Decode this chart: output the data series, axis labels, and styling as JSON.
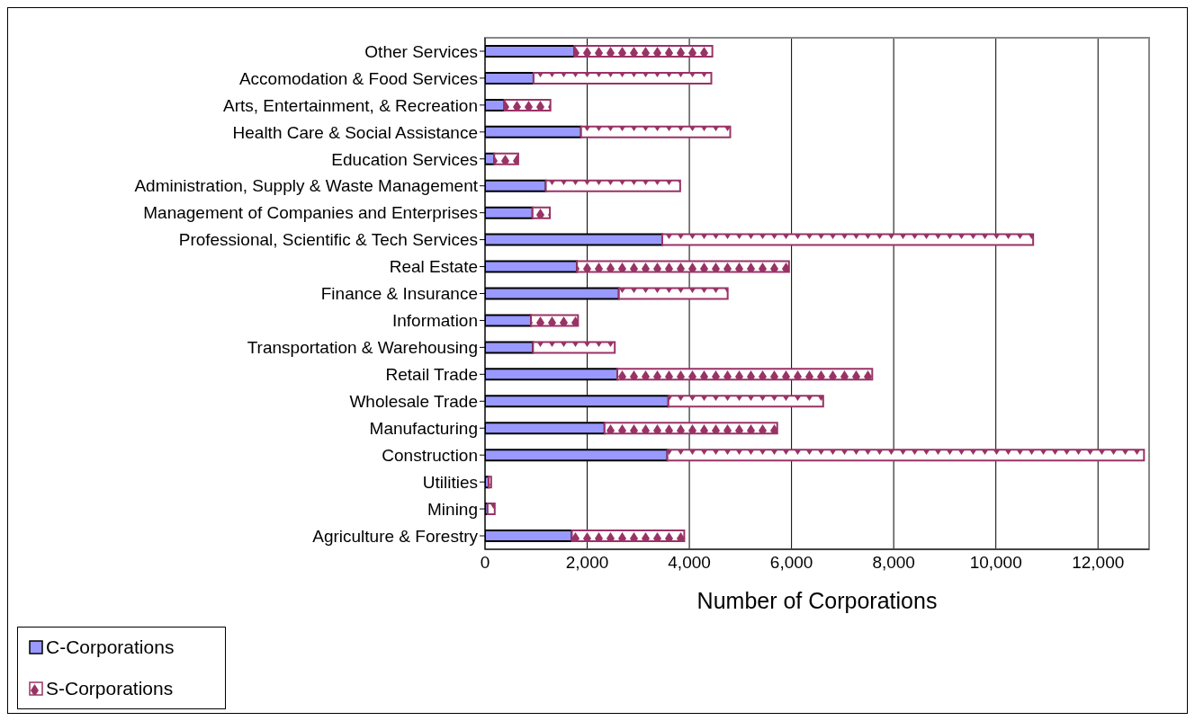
{
  "chart_data": {
    "type": "bar",
    "orientation": "horizontal",
    "stacked": true,
    "xlabel": "Number of Corporations",
    "categories": [
      "Other Services",
      "Accomodation & Food Services",
      "Arts, Entertainment, & Recreation",
      "Health Care & Social Assistance",
      "Education Services",
      "Administration, Supply & Waste Management",
      "Management of Companies and Enterprises",
      "Professional, Scientific & Tech Services",
      "Real Estate",
      "Finance & Insurance",
      "Information",
      "Transportation & Warehousing",
      "Retail Trade",
      "Wholesale Trade",
      "Manufacturing",
      "Construction",
      "Utilities",
      "Mining",
      "Agriculture & Forestry"
    ],
    "series": [
      {
        "name": "C-Corporations",
        "color": "#9999ff",
        "values": [
          1750,
          950,
          380,
          1880,
          180,
          1190,
          930,
          3470,
          1800,
          2620,
          900,
          940,
          2590,
          3590,
          2340,
          3570,
          70,
          50,
          1700
        ]
      },
      {
        "name": "S-Corporations",
        "color": "#993366",
        "values": [
          2700,
          3480,
          900,
          2920,
          470,
          2630,
          340,
          7260,
          4150,
          2130,
          920,
          1600,
          4990,
          3030,
          3380,
          9330,
          50,
          140,
          2200
        ]
      }
    ],
    "xlim": [
      0,
      13000
    ],
    "xticks": [
      {
        "value": 0,
        "label": "0"
      },
      {
        "value": 2000,
        "label": "2,000"
      },
      {
        "value": 4000,
        "label": "4,000"
      },
      {
        "value": 6000,
        "label": "6,000"
      },
      {
        "value": 8000,
        "label": "8,000"
      },
      {
        "value": 10000,
        "label": "10,000"
      },
      {
        "value": 12000,
        "label": "12,000"
      }
    ],
    "grid": "x",
    "legend": "bottom left"
  }
}
